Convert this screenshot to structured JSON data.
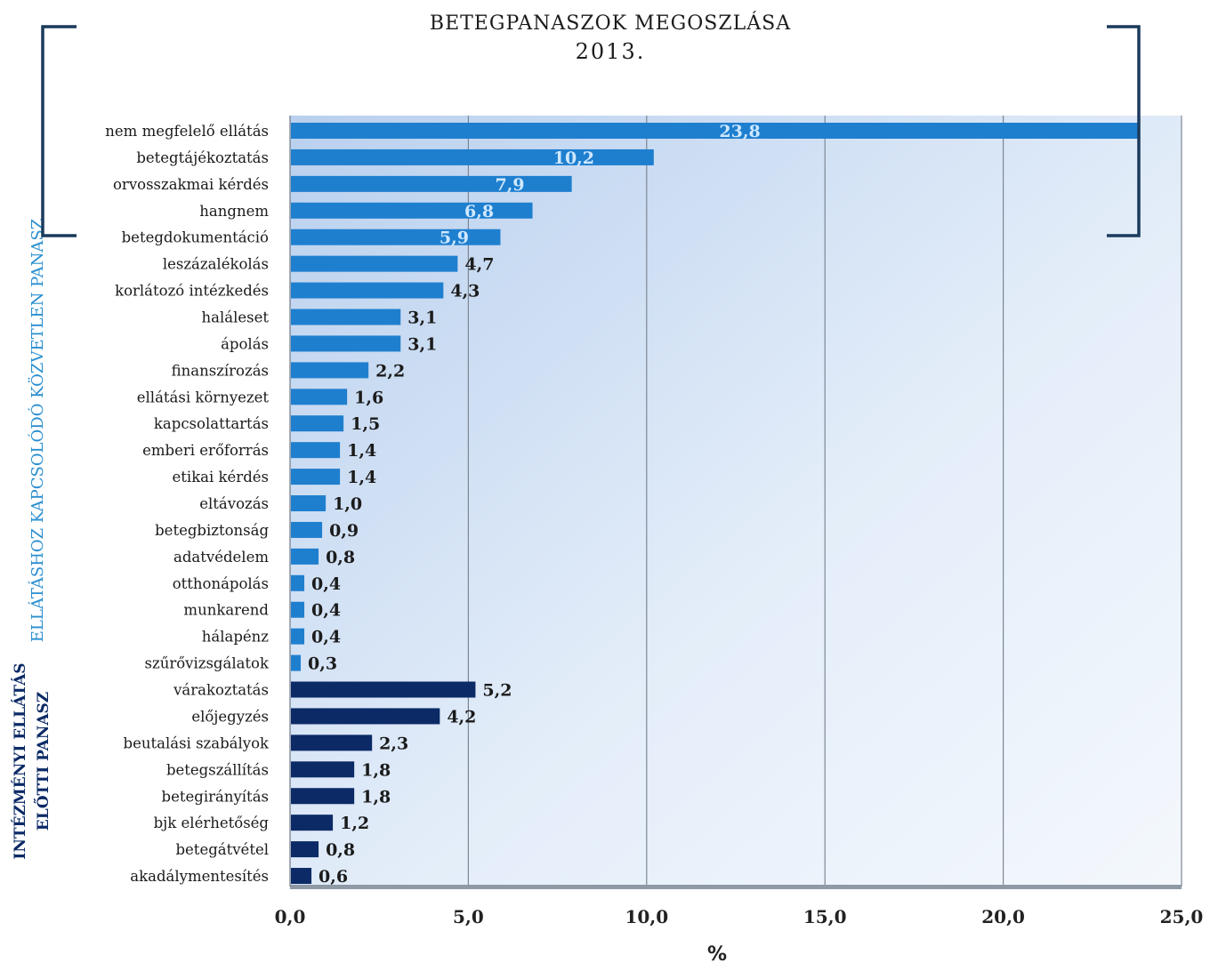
{
  "chart_data": {
    "type": "bar",
    "orientation": "horizontal",
    "title": "BETEGPANASZOK MEGOSZLÁSA",
    "subtitle": "2013.",
    "xlabel": "%",
    "xlim": [
      0,
      25
    ],
    "xticks": [
      "0,0",
      "5,0",
      "10,0",
      "15,0",
      "20,0",
      "25,0"
    ],
    "grid": "vertical",
    "groups": [
      {
        "name": "ELLÁTÁSHOZ KAPCSOLÓDÓ KÖZVETLEN PANASZ",
        "color": "#1f7fcf",
        "categories": [
          "nem megfelelő ellátás",
          "betegtájékoztatás",
          "orvosszakmai kérdés",
          "hangnem",
          "betegdokumentáció",
          "leszázalékolás",
          "korlátozó intézkedés",
          "haláleset",
          "ápolás",
          "finanszírozás",
          "ellátási környezet",
          "kapcsolattartás",
          "emberi erőforrás",
          "etikai kérdés",
          "eltávozás",
          "betegbiztonság",
          "adatvédelem",
          "otthonápolás",
          "munkarend",
          "hálapénz",
          "szűrővizsgálatok"
        ],
        "values": [
          23.8,
          10.2,
          7.9,
          6.8,
          5.9,
          4.7,
          4.3,
          3.1,
          3.1,
          2.2,
          1.6,
          1.5,
          1.4,
          1.4,
          1.0,
          0.9,
          0.8,
          0.4,
          0.4,
          0.4,
          0.3
        ],
        "labels": [
          "23,8",
          "10,2",
          "7,9",
          "6,8",
          "5,9",
          "4,7",
          "4,3",
          "3,1",
          "3,1",
          "2,2",
          "1,6",
          "1,5",
          "1,4",
          "1,4",
          "1,0",
          "0,9",
          "0,8",
          "0,4",
          "0,4",
          "0,4",
          "0,3"
        ]
      },
      {
        "name_lines": [
          "INTÉZMÉNYI ELLÁTÁS",
          "ELŐTTI PANASZ"
        ],
        "color": "#0b2a66",
        "categories": [
          "várakoztatás",
          "előjegyzés",
          "beutalási szabályok",
          "betegszállítás",
          "betegirányítás",
          "bjk elérhetőség",
          "betegátvétel",
          "akadálymentesítés"
        ],
        "values": [
          5.2,
          4.2,
          2.3,
          1.8,
          1.8,
          1.2,
          0.8,
          0.6
        ],
        "labels": [
          "5,2",
          "4,2",
          "2,3",
          "1,8",
          "1,8",
          "1,2",
          "0,8",
          "0,6"
        ]
      }
    ]
  }
}
